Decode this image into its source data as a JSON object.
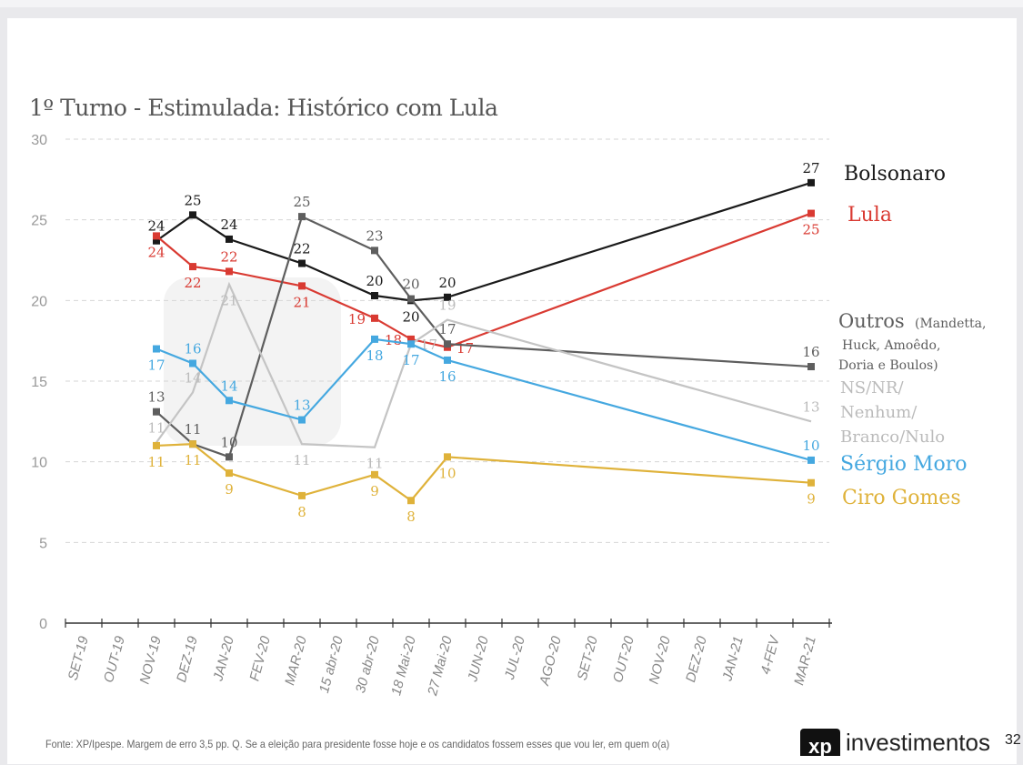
{
  "chart_data": {
    "type": "line",
    "title": "1º Turno - Estimulada: Histórico com Lula",
    "categories": [
      "SET-19",
      "OUT-19",
      "NOV-19",
      "DEZ-19",
      "JAN-20",
      "FEV-20",
      "MAR-20",
      "15 abr-20",
      "30 abr-20",
      "18 Mai-20",
      "27 Mai-20",
      "JUN-20",
      "JUL-20",
      "AGO-20",
      "SET-20",
      "OUT-20",
      "NOV-20",
      "DEZ-20",
      "JAN-21",
      "4-FEV",
      "MAR-21"
    ],
    "x": [
      "NOV-19",
      "DEZ-19",
      "JAN-20",
      "MAR-20",
      "30 abr-20",
      "18 Mai-20",
      "27 Mai-20",
      "MAR-21"
    ],
    "ylim": [
      0,
      30
    ],
    "yticks": [
      0,
      5,
      10,
      15,
      20,
      25,
      30
    ],
    "grid": "horizontal dashed",
    "legend": "right",
    "series": [
      {
        "name": "Bolsonaro",
        "color": "#1a1a1a",
        "marker": true,
        "values": [
          23.7,
          25.3,
          23.8,
          22.3,
          20.3,
          20.0,
          20.2,
          27.3
        ],
        "labels": [
          "24",
          "25",
          "24",
          "22",
          "20",
          "20",
          "20",
          "27"
        ]
      },
      {
        "name": "Lula",
        "color": "#d93a32",
        "marker": true,
        "values": [
          24.0,
          22.1,
          21.8,
          20.9,
          18.9,
          17.6,
          17.1,
          25.4
        ],
        "labels": [
          "24",
          "22",
          "22",
          "21",
          "19",
          "18",
          "17",
          "25"
        ]
      },
      {
        "name": "Outros",
        "name_detail": "(Mandetta, Huck, Amoêdo, Doria e Boulos)",
        "color": "#5e5e5e",
        "marker": true,
        "values": [
          13.1,
          11.1,
          10.3,
          25.2,
          23.1,
          20.1,
          17.3,
          15.9
        ],
        "labels": [
          "13",
          "11",
          "10",
          "25",
          "23",
          "20",
          "17",
          "16"
        ]
      },
      {
        "name": "NS/NR/ Nenhum/ Branco/Nulo",
        "color": "#c4c4c4",
        "marker": false,
        "values": [
          11.2,
          14.3,
          21.0,
          11.1,
          10.9,
          17.3,
          18.8,
          12.5
        ],
        "labels": [
          "11",
          "14",
          "21",
          "11",
          "11",
          "17",
          "19",
          "13"
        ]
      },
      {
        "name": "Sérgio Moro",
        "color": "#45a8e0",
        "marker": true,
        "values": [
          17.0,
          16.1,
          13.8,
          12.6,
          17.6,
          17.3,
          16.3,
          10.1
        ],
        "labels": [
          "17",
          "16",
          "14",
          "13",
          "18",
          "17",
          "16",
          "10"
        ]
      },
      {
        "name": "Ciro Gomes",
        "color": "#dfb23a",
        "marker": true,
        "values": [
          11.0,
          11.1,
          9.3,
          7.9,
          9.2,
          7.6,
          10.3,
          8.7
        ],
        "labels": [
          "11",
          "11",
          "9",
          "8",
          "9",
          "8",
          "10",
          "9"
        ]
      }
    ]
  },
  "footer": {
    "source": "Fonte: XP/Ipespe. Margem de erro 3,5 pp. Q. Se a eleição para presidente fosse hoje e os candidatos fossem esses que vou ler, em quem o(a)",
    "logo": "xp investimentos",
    "page": "32"
  }
}
